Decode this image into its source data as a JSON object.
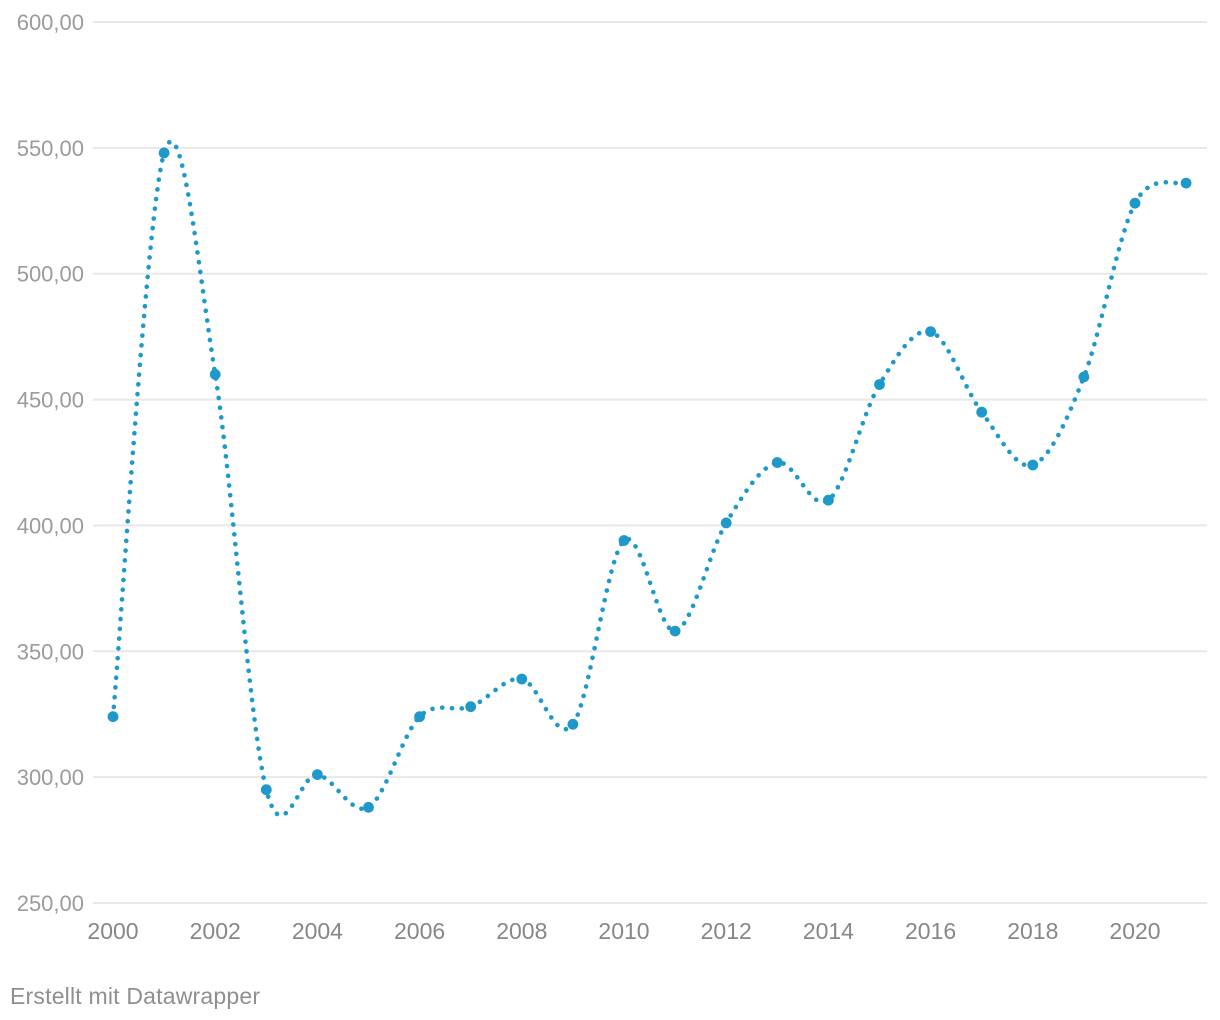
{
  "chart_data": {
    "type": "line",
    "line_style": "dotted",
    "curve": "smooth",
    "title": "",
    "xlabel": "",
    "ylabel": "",
    "x": [
      2000,
      2001,
      2002,
      2003,
      2004,
      2005,
      2006,
      2007,
      2008,
      2009,
      2010,
      2011,
      2012,
      2013,
      2014,
      2015,
      2016,
      2017,
      2018,
      2019,
      2020,
      2021
    ],
    "values": [
      324,
      548,
      460,
      295,
      301,
      288,
      324,
      328,
      339,
      321,
      394,
      358,
      401,
      425,
      410,
      456,
      477,
      445,
      424,
      459,
      528,
      536
    ],
    "xlim": [
      2000,
      2021
    ],
    "ylim": [
      250,
      600
    ],
    "y_ticks": [
      600,
      550,
      500,
      450,
      400,
      350,
      300,
      250
    ],
    "y_tick_labels": [
      "600,00",
      "550,00",
      "500,00",
      "450,00",
      "400,00",
      "350,00",
      "300,00",
      "250,00"
    ],
    "x_ticks": [
      2000,
      2002,
      2004,
      2006,
      2008,
      2010,
      2012,
      2014,
      2016,
      2018,
      2020
    ],
    "x_tick_labels": [
      "2000",
      "2002",
      "2004",
      "2006",
      "2008",
      "2010",
      "2012",
      "2014",
      "2016",
      "2018",
      "2020"
    ],
    "grid": "horizontal",
    "legend": "none",
    "colors": {
      "line": "#1e99ca",
      "marker": "#1e99ca",
      "gridline": "#e8e8e8",
      "y_tick_text": "#9b9b9b",
      "x_tick_text": "#878787",
      "footer_text": "#8f8f8f"
    }
  },
  "footer": {
    "text": "Erstellt mit Datawrapper"
  }
}
